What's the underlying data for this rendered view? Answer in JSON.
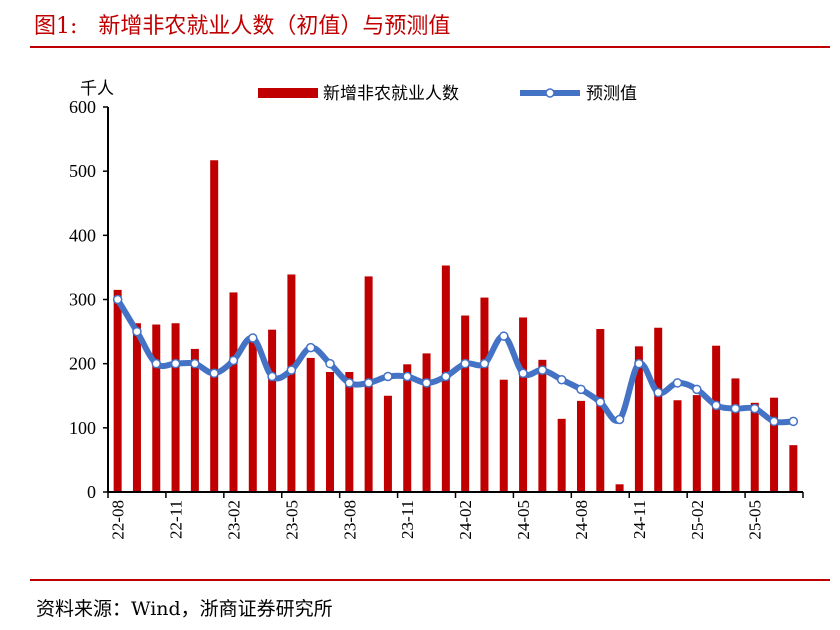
{
  "title": "图1:   新增非农就业人数（初值）与预测值",
  "source": "资料来源：Wind，浙商证券研究所",
  "chart_data": {
    "type": "bar+line",
    "ylabel": "千人",
    "ylim": [
      0,
      600
    ],
    "yticks": [
      0,
      100,
      200,
      300,
      400,
      500,
      600
    ],
    "legend_position": "top",
    "grid": false,
    "categories": [
      "22-08",
      "22-09",
      "22-10",
      "22-11",
      "22-12",
      "23-01",
      "23-02",
      "23-03",
      "23-04",
      "23-05",
      "23-06",
      "23-07",
      "23-08",
      "23-09",
      "23-10",
      "23-11",
      "23-12",
      "24-01",
      "24-02",
      "24-03",
      "24-04",
      "24-05",
      "24-06",
      "24-07",
      "24-08",
      "24-09",
      "24-10",
      "24-11",
      "24-12",
      "25-01",
      "25-02",
      "25-03",
      "25-04",
      "25-05",
      "25-06",
      "25-07"
    ],
    "xtick_labels": [
      "22-08",
      "22-11",
      "23-02",
      "23-05",
      "23-08",
      "23-11",
      "24-02",
      "24-05",
      "24-08",
      "24-11",
      "25-02",
      "25-05"
    ],
    "series": [
      {
        "name": "新增非农就业人数",
        "type": "bar",
        "color": "#c00000",
        "values": [
          315,
          263,
          261,
          263,
          223,
          517,
          311,
          236,
          253,
          339,
          209,
          187,
          187,
          336,
          150,
          199,
          216,
          353,
          275,
          303,
          175,
          272,
          206,
          114,
          142,
          254,
          12,
          227,
          256,
          143,
          151,
          228,
          177,
          139,
          147,
          73
        ]
      },
      {
        "name": "预测值",
        "type": "line",
        "color": "#4472c4",
        "values": [
          300,
          250,
          200,
          200,
          200,
          185,
          205,
          240,
          180,
          190,
          225,
          200,
          170,
          170,
          180,
          180,
          170,
          180,
          200,
          200,
          243,
          185,
          190,
          175,
          160,
          140,
          113,
          200,
          155,
          170,
          160,
          135,
          130,
          130,
          110,
          110
        ]
      }
    ]
  }
}
